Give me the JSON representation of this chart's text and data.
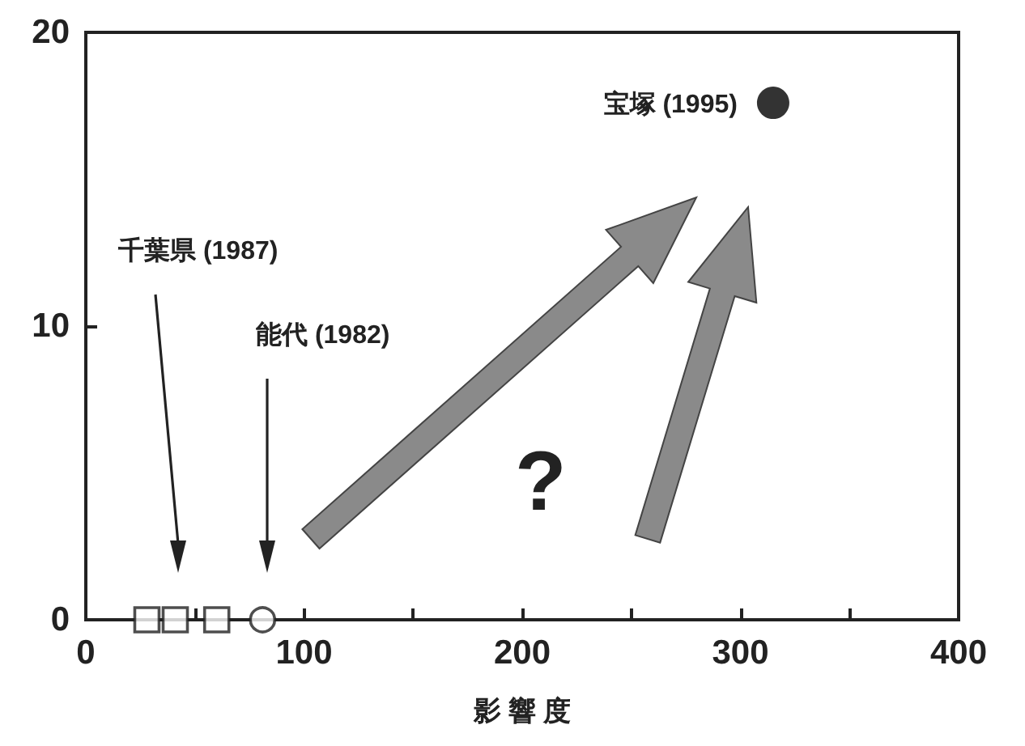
{
  "chart_data": {
    "type": "scatter",
    "xlabel": "影 響 度",
    "xlim": [
      0,
      400
    ],
    "xticks": [
      0,
      {
        "value": 50,
        "label": null
      },
      100,
      {
        "value": 150,
        "label": null
      },
      200,
      {
        "value": 250,
        "label": null
      },
      300,
      {
        "value": 350,
        "label": null
      },
      400
    ],
    "ylim": [
      0,
      20
    ],
    "yticks": [
      0,
      10,
      20
    ],
    "grid": false,
    "series": [
      {
        "color": "#222222",
        "marker": "square",
        "x": [
          28,
          41,
          60
        ],
        "values": [
          0,
          0,
          0
        ]
      },
      {
        "color": "#222222",
        "marker": "circle",
        "x": [
          81
        ],
        "values": [
          0
        ]
      },
      {
        "color": "#333333",
        "marker": "circle",
        "x": [
          315
        ],
        "values": [
          17.6
        ]
      }
    ],
    "annotations": [
      {
        "text": "宝塚 (1995)",
        "x": 315,
        "y": 17.6
      },
      "千葉県 (1987)",
      "能代 (1982)",
      "?"
    ]
  }
}
